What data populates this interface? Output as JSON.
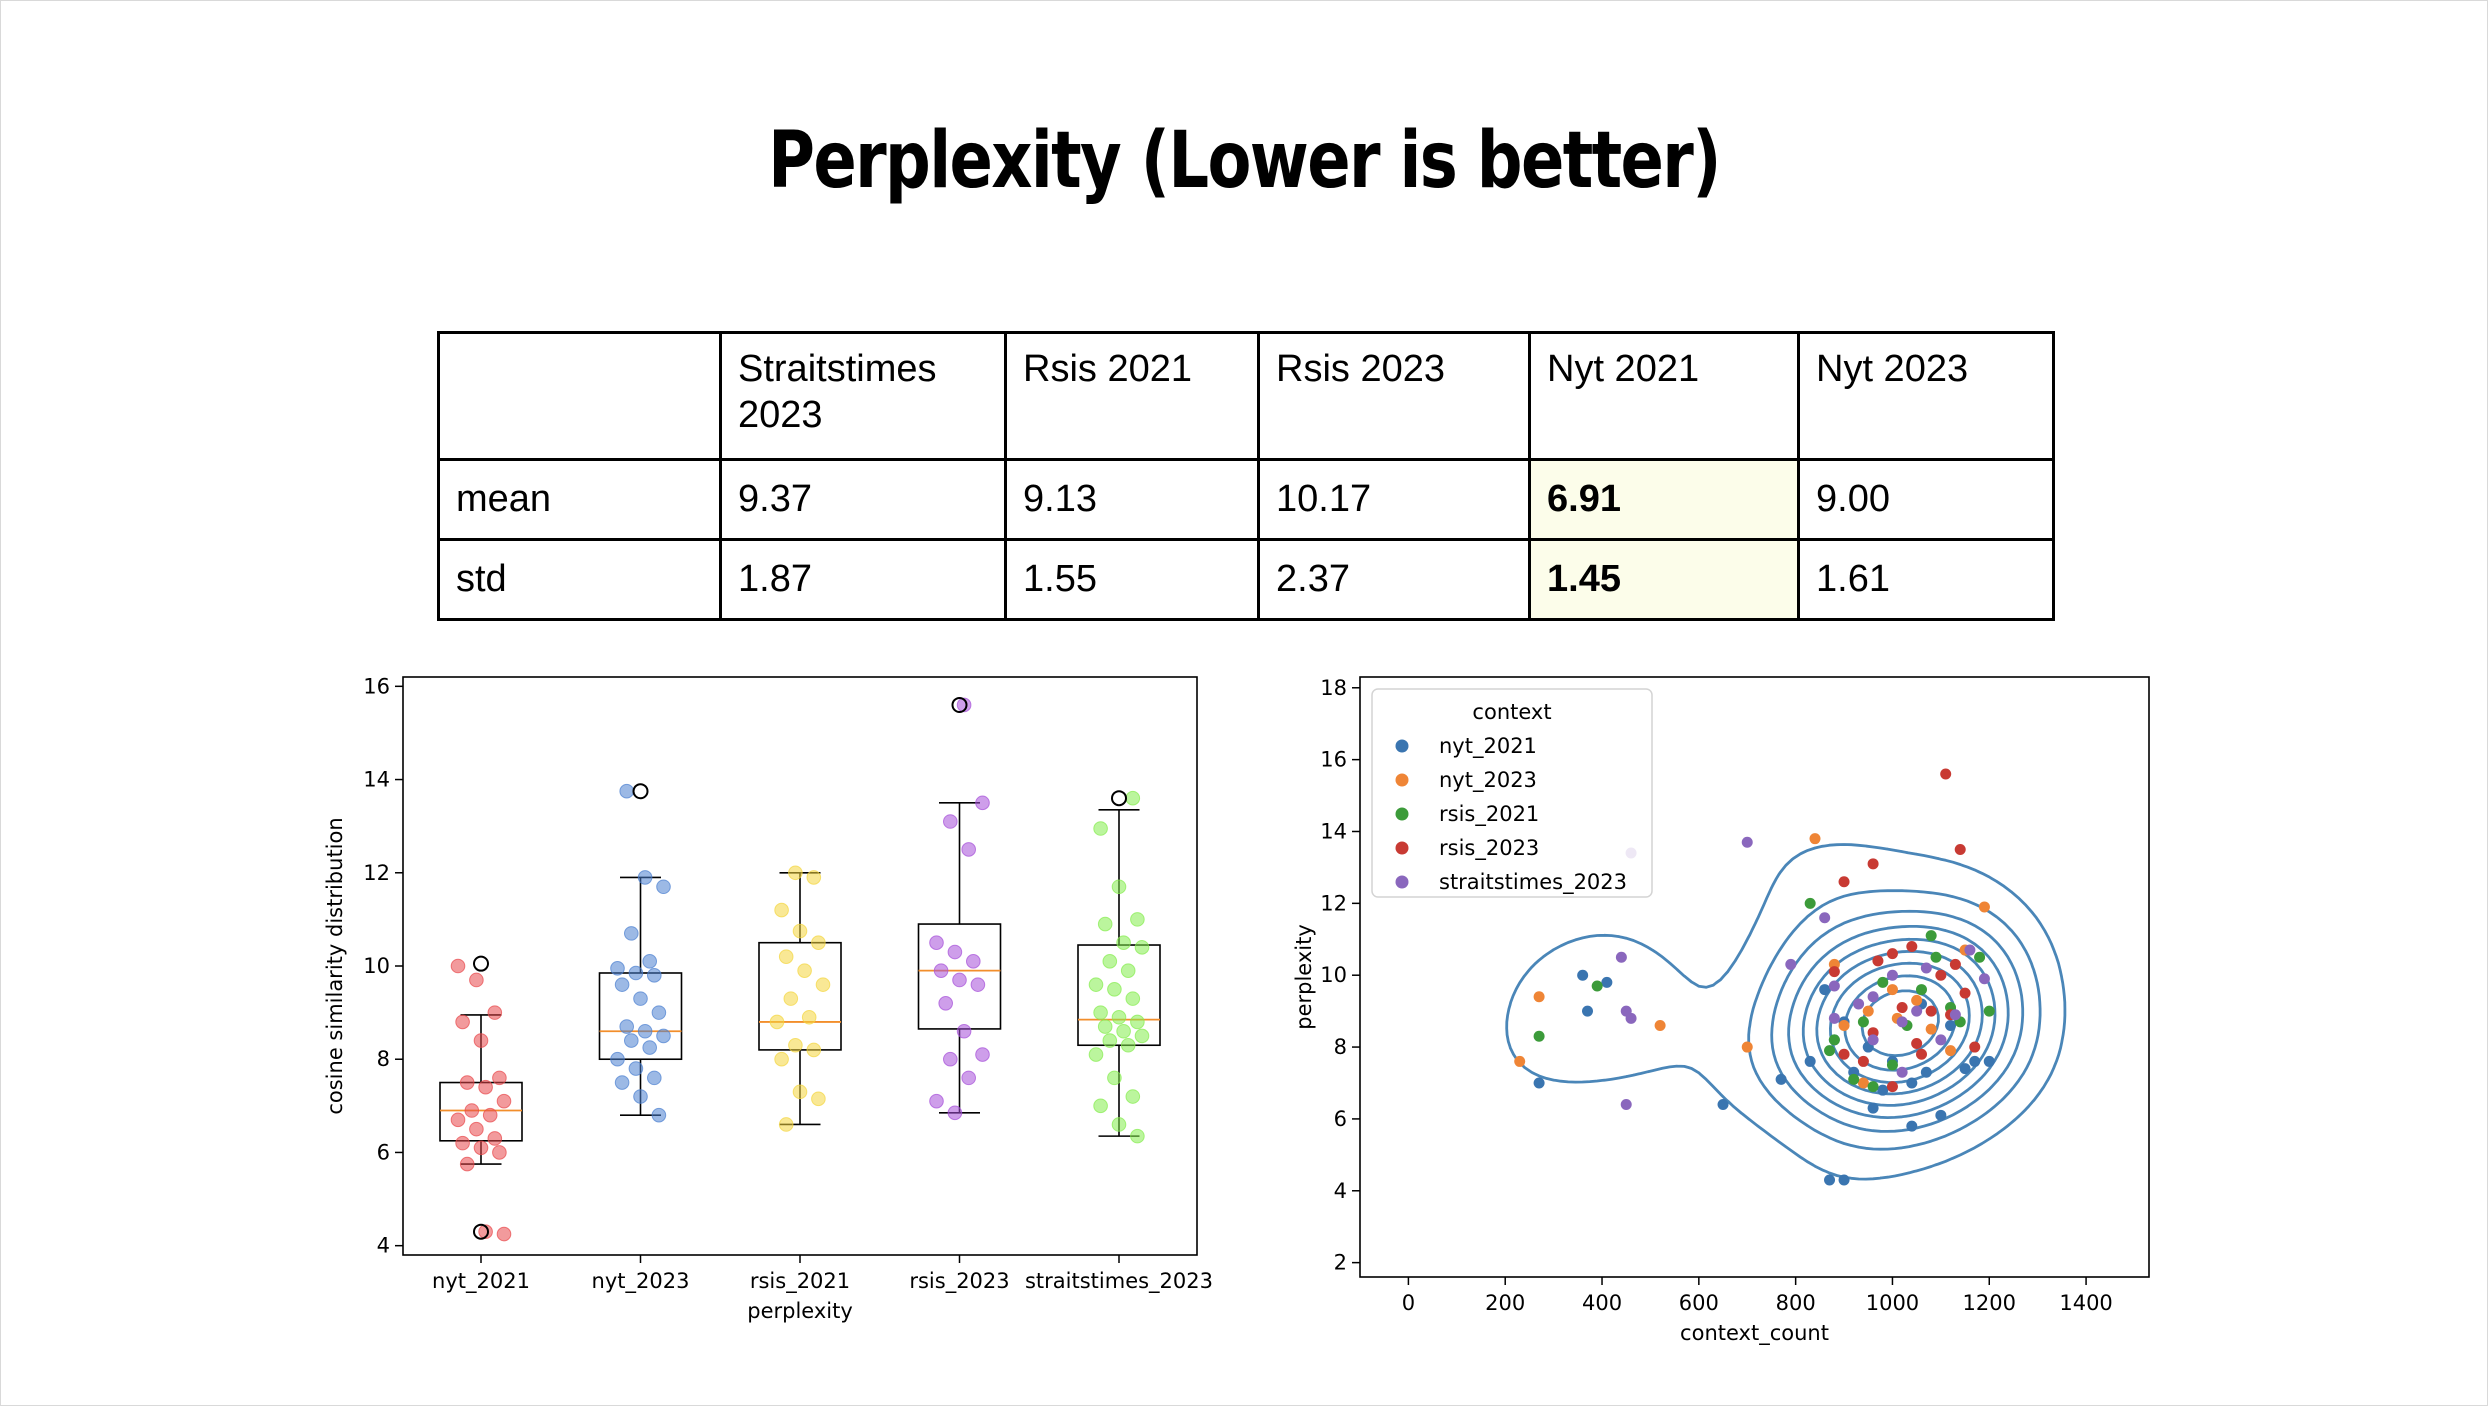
{
  "title": "Perplexity (Lower is better)",
  "table": {
    "headers": [
      "",
      "Straitstimes 2023",
      "Rsis 2021",
      "Rsis 2023",
      "Nyt 2021",
      "Nyt 2023"
    ],
    "rows": [
      {
        "label": "mean",
        "values": [
          "9.37",
          "9.13",
          "10.17",
          "6.91",
          "9.00"
        ]
      },
      {
        "label": "std",
        "values": [
          "1.87",
          "1.55",
          "2.37",
          "1.45",
          "1.61"
        ]
      }
    ],
    "highlight_column": 4,
    "highlight_color": "#fcfdea"
  },
  "chart_data": [
    {
      "type": "box",
      "xlabel": "perplexity",
      "ylabel": "cosine similarity distribution",
      "ylim": [
        3.8,
        16.2
      ],
      "yticks": [
        4,
        6,
        8,
        10,
        12,
        14,
        16
      ],
      "categories": [
        "nyt_2021",
        "nyt_2023",
        "rsis_2021",
        "rsis_2023",
        "straitstimes_2023"
      ],
      "colors": [
        "#e8474a",
        "#4a7fd0",
        "#f4d63e",
        "#a54fd8",
        "#84ec4d"
      ],
      "boxes": [
        {
          "min": 5.75,
          "q1": 6.25,
          "median": 6.9,
          "q3": 7.5,
          "max": 8.95,
          "outliers": [
            10.05,
            4.3
          ]
        },
        {
          "min": 6.8,
          "q1": 8.0,
          "median": 8.6,
          "q3": 9.85,
          "max": 11.9,
          "outliers": [
            13.75
          ]
        },
        {
          "min": 6.6,
          "q1": 8.2,
          "median": 8.8,
          "q3": 10.5,
          "max": 12.0,
          "outliers": []
        },
        {
          "min": 6.85,
          "q1": 8.65,
          "median": 9.9,
          "q3": 10.9,
          "max": 13.5,
          "outliers": [
            15.6
          ]
        },
        {
          "min": 6.35,
          "q1": 8.3,
          "median": 8.85,
          "q3": 10.45,
          "max": 13.35,
          "outliers": [
            13.6
          ]
        }
      ],
      "points": [
        [
          10.0,
          9.7,
          9.0,
          8.8,
          8.4,
          7.6,
          7.5,
          7.4,
          7.1,
          6.9,
          6.8,
          6.7,
          6.5,
          6.3,
          6.2,
          6.1,
          6.0,
          5.75,
          4.3,
          4.25
        ],
        [
          13.75,
          11.9,
          11.7,
          10.7,
          10.1,
          9.95,
          9.85,
          9.8,
          9.6,
          9.3,
          9.0,
          8.7,
          8.6,
          8.5,
          8.4,
          8.25,
          8.0,
          7.8,
          7.6,
          7.5,
          7.2,
          6.8
        ],
        [
          12.0,
          11.9,
          11.2,
          10.75,
          10.5,
          10.2,
          9.9,
          9.6,
          9.3,
          8.9,
          8.8,
          8.3,
          8.2,
          8.0,
          7.3,
          7.15,
          6.6
        ],
        [
          15.6,
          13.5,
          13.1,
          12.5,
          10.5,
          10.3,
          10.1,
          9.9,
          9.7,
          9.6,
          9.2,
          8.6,
          8.1,
          8.0,
          7.6,
          7.1,
          6.85
        ],
        [
          13.6,
          12.95,
          11.7,
          11.0,
          10.9,
          10.5,
          10.4,
          10.1,
          9.9,
          9.6,
          9.5,
          9.3,
          9.0,
          8.9,
          8.8,
          8.7,
          8.6,
          8.5,
          8.4,
          8.3,
          8.1,
          7.6,
          7.2,
          7.0,
          6.6,
          6.35
        ]
      ]
    },
    {
      "type": "scatter",
      "xlabel": "context_count",
      "ylabel": "perplexity",
      "xlim": [
        -100,
        1530
      ],
      "ylim": [
        1.6,
        18.3
      ],
      "xticks": [
        0,
        200,
        400,
        600,
        800,
        1000,
        1200,
        1400
      ],
      "yticks": [
        2,
        4,
        6,
        8,
        10,
        12,
        14,
        16,
        18
      ],
      "legend": {
        "title": "context",
        "position": "top-left"
      },
      "contour_color": "#4a86b8",
      "series": [
        {
          "name": "nyt_2021",
          "color": "#3a75b0",
          "points": [
            [
              360,
              10.0
            ],
            [
              370,
              9.0
            ],
            [
              410,
              9.8
            ],
            [
              270,
              7.0
            ],
            [
              650,
              6.4
            ],
            [
              770,
              7.1
            ],
            [
              830,
              7.6
            ],
            [
              880,
              8.2
            ],
            [
              920,
              7.3
            ],
            [
              950,
              8.0
            ],
            [
              980,
              6.8
            ],
            [
              1000,
              7.6
            ],
            [
              1040,
              7.0
            ],
            [
              1070,
              7.3
            ],
            [
              1100,
              6.1
            ],
            [
              1150,
              7.4
            ],
            [
              1170,
              7.6
            ],
            [
              1200,
              7.6
            ],
            [
              870,
              4.3
            ],
            [
              900,
              4.3
            ],
            [
              960,
              6.3
            ],
            [
              1040,
              5.8
            ],
            [
              1120,
              8.6
            ],
            [
              1060,
              9.2
            ],
            [
              900,
              8.7
            ],
            [
              860,
              9.6
            ]
          ]
        },
        {
          "name": "nyt_2023",
          "color": "#ef8536",
          "points": [
            [
              230,
              7.6
            ],
            [
              270,
              9.4
            ],
            [
              520,
              8.6
            ],
            [
              700,
              8.0
            ],
            [
              840,
              13.8
            ],
            [
              900,
              8.6
            ],
            [
              1000,
              9.6
            ],
            [
              1050,
              9.3
            ],
            [
              1080,
              8.5
            ],
            [
              1190,
              11.9
            ],
            [
              1150,
              10.7
            ],
            [
              950,
              9.0
            ],
            [
              880,
              10.3
            ],
            [
              940,
              7.0
            ],
            [
              1010,
              8.8
            ],
            [
              1120,
              7.9
            ]
          ]
        },
        {
          "name": "rsis_2021",
          "color": "#3c9b3a",
          "points": [
            [
              270,
              8.3
            ],
            [
              390,
              9.7
            ],
            [
              830,
              12.0
            ],
            [
              880,
              8.2
            ],
            [
              920,
              7.1
            ],
            [
              940,
              8.7
            ],
            [
              1000,
              7.5
            ],
            [
              1030,
              8.6
            ],
            [
              1060,
              9.6
            ],
            [
              1080,
              11.1
            ],
            [
              1120,
              9.1
            ],
            [
              1180,
              10.5
            ],
            [
              1200,
              9.0
            ],
            [
              980,
              9.8
            ],
            [
              1090,
              10.5
            ],
            [
              960,
              6.9
            ],
            [
              870,
              7.9
            ],
            [
              1140,
              8.7
            ]
          ]
        },
        {
          "name": "rsis_2023",
          "color": "#c83a33",
          "points": [
            [
              1110,
              15.6
            ],
            [
              1140,
              13.5
            ],
            [
              900,
              12.6
            ],
            [
              960,
              13.1
            ],
            [
              970,
              10.4
            ],
            [
              1000,
              10.6
            ],
            [
              1020,
              9.1
            ],
            [
              1050,
              8.1
            ],
            [
              1080,
              9.0
            ],
            [
              1120,
              8.9
            ],
            [
              1150,
              9.5
            ],
            [
              1170,
              8.0
            ],
            [
              940,
              7.6
            ],
            [
              900,
              7.8
            ],
            [
              1000,
              6.9
            ],
            [
              1100,
              10.0
            ],
            [
              880,
              10.1
            ],
            [
              1040,
              10.8
            ],
            [
              1060,
              7.8
            ],
            [
              960,
              8.4
            ],
            [
              1130,
              10.3
            ]
          ]
        },
        {
          "name": "straitstimes_2023",
          "color": "#8a67bd",
          "points": [
            [
              440,
              10.5
            ],
            [
              460,
              13.4
            ],
            [
              450,
              9.0
            ],
            [
              460,
              8.8
            ],
            [
              450,
              6.4
            ],
            [
              700,
              13.7
            ],
            [
              790,
              10.3
            ],
            [
              860,
              11.6
            ],
            [
              880,
              9.7
            ],
            [
              930,
              9.2
            ],
            [
              960,
              9.4
            ],
            [
              1000,
              10.0
            ],
            [
              1020,
              8.7
            ],
            [
              1050,
              9.0
            ],
            [
              1070,
              10.2
            ],
            [
              1100,
              8.2
            ],
            [
              1130,
              8.9
            ],
            [
              1160,
              10.7
            ],
            [
              1190,
              9.9
            ],
            [
              960,
              8.2
            ],
            [
              1020,
              7.3
            ],
            [
              880,
              8.8
            ]
          ]
        }
      ]
    }
  ]
}
